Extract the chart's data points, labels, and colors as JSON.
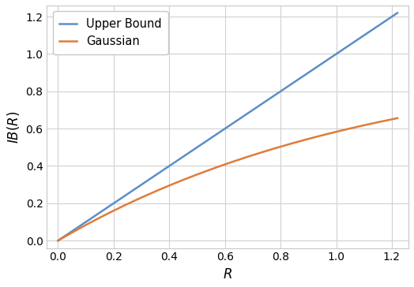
{
  "title": "",
  "xlabel": "R",
  "ylabel": "$\\mathit{IB}(R)$",
  "xlim": [
    -0.04,
    1.26
  ],
  "ylim": [
    -0.04,
    1.26
  ],
  "xticks": [
    0.0,
    0.2,
    0.4,
    0.6,
    0.8,
    1.0,
    1.2
  ],
  "yticks": [
    0.0,
    0.2,
    0.4,
    0.6,
    0.8,
    1.0,
    1.2
  ],
  "upper_bound_color": "#5b8ec8",
  "gaussian_color": "#e07b39",
  "upper_bound_label": "Upper Bound",
  "gaussian_label": "Gaussian",
  "line_width": 1.8,
  "legend_fontsize": 10.5,
  "axis_label_fontsize": 12,
  "tick_fontsize": 10,
  "grid_color": "#d0d0d0",
  "background_color": "#ffffff",
  "R_min": 0.0,
  "R_max": 1.22,
  "R_points": 500,
  "gaussian_a": 0.875
}
